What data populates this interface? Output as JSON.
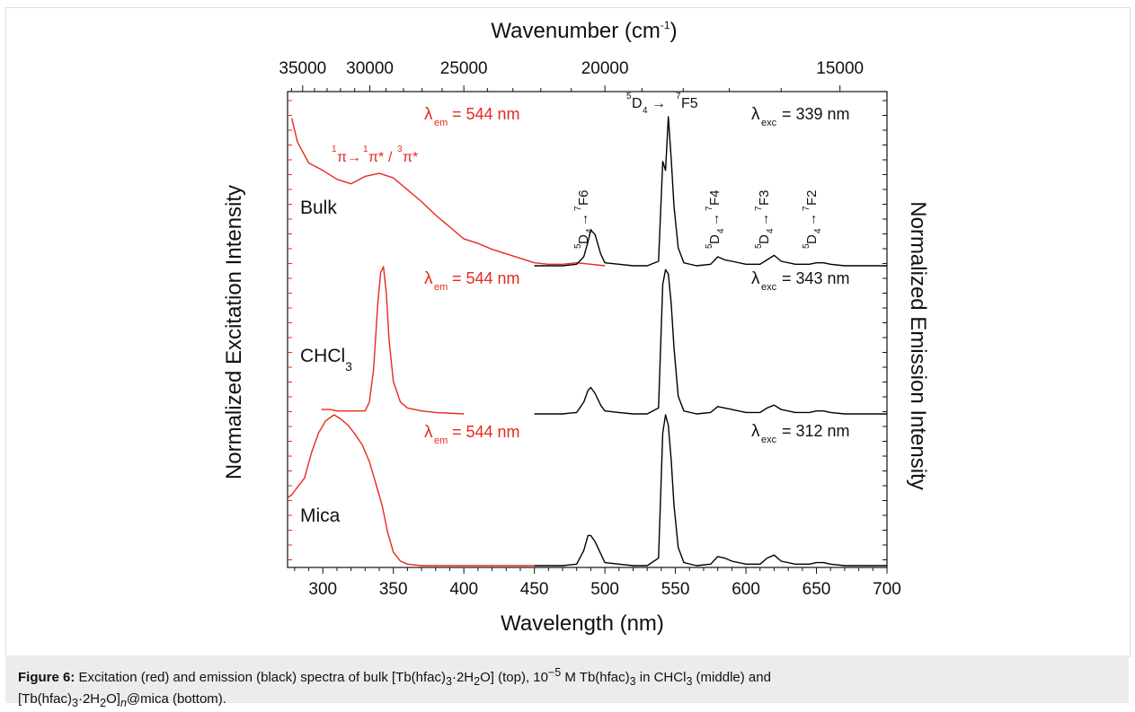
{
  "chart_data": {
    "type": "line",
    "xlabel": "Wavelength (nm)",
    "top_xlabel": "Wavenumber (cm",
    "top_xlabel_sup": "-1",
    "top_xlabel_close": ")",
    "ylabel_left": "Normalized Excitation Intensity",
    "ylabel_right": "Normalized Emission Intensity",
    "xlim": [
      275,
      700
    ],
    "x_ticks": [
      300,
      350,
      400,
      450,
      500,
      550,
      600,
      650,
      700
    ],
    "top_ticks": [
      35000,
      30000,
      25000,
      20000,
      15000
    ],
    "panels": [
      {
        "name": "Bulk",
        "excitation_label": "= 544 nm",
        "emission_label": "= 339 nm",
        "excitation": {
          "x": [
            278,
            282,
            290,
            300,
            310,
            320,
            330,
            340,
            350,
            360,
            370,
            380,
            390,
            400,
            410,
            420,
            430,
            440,
            450,
            460,
            470,
            480,
            490,
            500
          ],
          "y": [
            0.99,
            0.83,
            0.69,
            0.64,
            0.58,
            0.55,
            0.6,
            0.62,
            0.59,
            0.51,
            0.43,
            0.34,
            0.26,
            0.18,
            0.15,
            0.11,
            0.08,
            0.05,
            0.02,
            0.01,
            0.01,
            0.02,
            0.01,
            0.0
          ]
        },
        "emission": {
          "x": [
            450,
            470,
            480,
            485,
            488,
            490,
            493,
            497,
            500,
            510,
            520,
            530,
            538,
            541,
            543,
            545,
            547,
            549,
            552,
            556,
            565,
            575,
            580,
            585,
            590,
            600,
            610,
            615,
            620,
            625,
            635,
            645,
            650,
            655,
            660,
            670,
            680,
            690,
            700
          ],
          "y": [
            0.0,
            0.0,
            0.01,
            0.06,
            0.16,
            0.24,
            0.21,
            0.08,
            0.02,
            0.01,
            0.0,
            0.0,
            0.03,
            0.7,
            0.64,
            1.0,
            0.72,
            0.4,
            0.12,
            0.02,
            0.0,
            0.01,
            0.06,
            0.04,
            0.03,
            0.01,
            0.01,
            0.04,
            0.07,
            0.03,
            0.01,
            0.01,
            0.02,
            0.02,
            0.01,
            0.0,
            0.0,
            0.0,
            0.0
          ]
        },
        "transitions": [
          "F6",
          "F4",
          "F3",
          "F2"
        ],
        "main_transition": "F5",
        "pi_annotation": [
          "π",
          "π*",
          "/",
          "π*"
        ]
      },
      {
        "name": "CHCl",
        "name_sub": "3",
        "excitation_label": "= 544 nm",
        "emission_label": "= 343 nm",
        "excitation": {
          "x": [
            299,
            305,
            310,
            320,
            330,
            333,
            336,
            339,
            341,
            343,
            345,
            347,
            350,
            355,
            360,
            370,
            380,
            400
          ],
          "y": [
            0.03,
            0.03,
            0.02,
            0.02,
            0.02,
            0.08,
            0.3,
            0.75,
            0.96,
            1.0,
            0.82,
            0.5,
            0.22,
            0.08,
            0.04,
            0.02,
            0.01,
            0.0
          ]
        },
        "emission": {
          "x": [
            450,
            470,
            480,
            485,
            488,
            490,
            493,
            497,
            500,
            510,
            520,
            530,
            538,
            541,
            543,
            545,
            547,
            549,
            552,
            556,
            565,
            575,
            580,
            585,
            590,
            600,
            610,
            615,
            620,
            625,
            635,
            645,
            650,
            655,
            660,
            670,
            680,
            690,
            700
          ],
          "y": [
            0.0,
            0.0,
            0.01,
            0.08,
            0.16,
            0.18,
            0.14,
            0.06,
            0.02,
            0.01,
            0.0,
            0.0,
            0.04,
            0.88,
            0.98,
            0.95,
            0.75,
            0.45,
            0.12,
            0.02,
            0.0,
            0.01,
            0.05,
            0.04,
            0.03,
            0.01,
            0.01,
            0.04,
            0.06,
            0.03,
            0.01,
            0.01,
            0.02,
            0.02,
            0.01,
            0.0,
            0.0,
            0.0,
            0.0
          ]
        }
      },
      {
        "name": "Mica",
        "excitation_label": "= 544 nm",
        "emission_label": "= 312 nm",
        "excitation": {
          "x": [
            275,
            278,
            282,
            287,
            292,
            297,
            302,
            308,
            313,
            318,
            323,
            328,
            333,
            338,
            342,
            346,
            350,
            355,
            360,
            370,
            380,
            400,
            420,
            450
          ],
          "y": [
            0.45,
            0.47,
            0.52,
            0.58,
            0.75,
            0.88,
            0.96,
            1.0,
            0.97,
            0.93,
            0.87,
            0.8,
            0.69,
            0.53,
            0.4,
            0.22,
            0.09,
            0.03,
            0.01,
            0.0,
            0.0,
            0.0,
            0.0,
            0.0
          ]
        },
        "emission": {
          "x": [
            450,
            470,
            480,
            485,
            488,
            490,
            493,
            497,
            500,
            510,
            520,
            530,
            538,
            541,
            543,
            545,
            547,
            549,
            552,
            556,
            565,
            575,
            580,
            585,
            590,
            600,
            610,
            615,
            620,
            625,
            635,
            645,
            650,
            655,
            660,
            670,
            680,
            690,
            700
          ],
          "y": [
            0.0,
            0.0,
            0.01,
            0.1,
            0.2,
            0.2,
            0.16,
            0.08,
            0.02,
            0.01,
            0.0,
            0.0,
            0.05,
            0.88,
            1.0,
            0.93,
            0.7,
            0.4,
            0.12,
            0.02,
            0.0,
            0.01,
            0.06,
            0.05,
            0.03,
            0.01,
            0.01,
            0.05,
            0.07,
            0.03,
            0.01,
            0.01,
            0.02,
            0.02,
            0.01,
            0.0,
            0.0,
            0.0,
            0.0
          ]
        }
      }
    ]
  },
  "colors": {
    "excitation": "#e8291c",
    "emission": "#000000"
  },
  "caption": {
    "label": "Figure 6:",
    "text_a": "Excitation (red) and emission (black) spectra of bulk [Tb(hfac)",
    "text_b": "·2H",
    "text_c": "O] (top), 10",
    "text_d": "−5",
    "text_e": " M Tb(hfac)",
    "text_f": " in CHCl",
    "text_g": " (middle) and",
    "text_h": "[Tb(hfac)",
    "text_i": "·2H",
    "text_j": "O]",
    "text_k": "n",
    "text_l": "@mica (bottom).",
    "sub3": "3",
    "sub2": "2"
  }
}
